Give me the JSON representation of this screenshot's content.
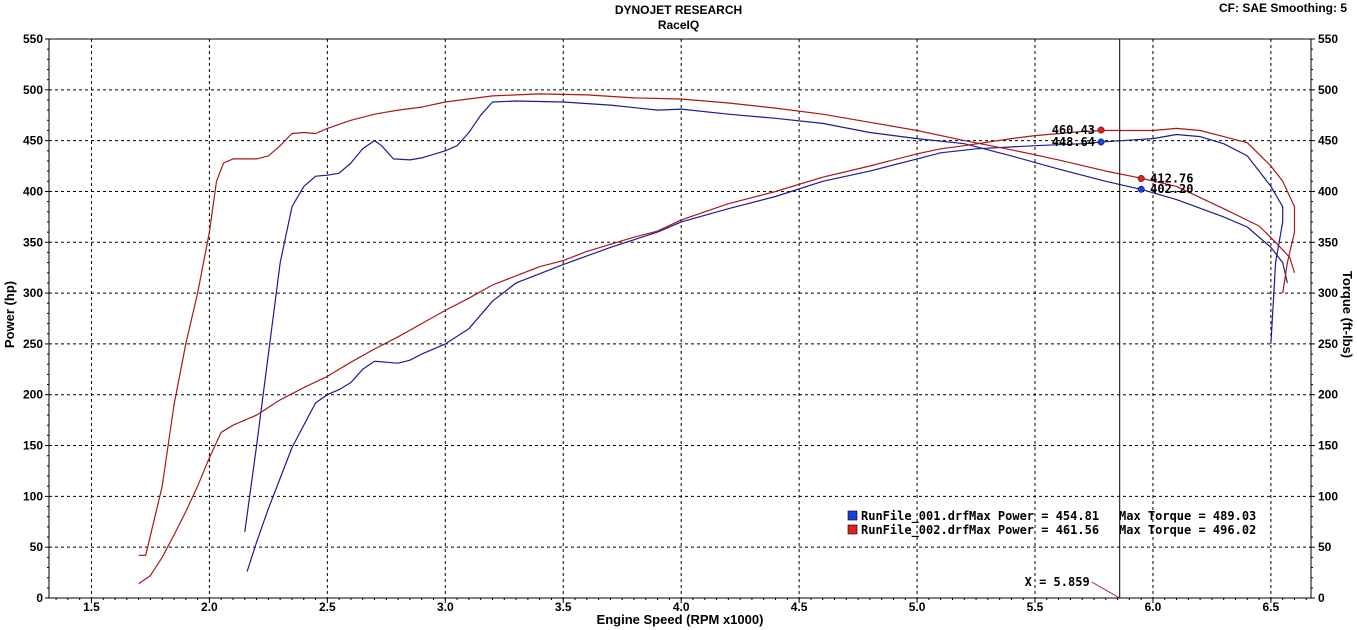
{
  "header": {
    "title": "DYNOJET RESEARCH",
    "subtitle": "RaceIQ",
    "correction": "CF: SAE  Smoothing: 5"
  },
  "chart_data": {
    "type": "line",
    "xlabel": "Engine Speed (RPM x1000)",
    "ylabel_left": "Power (hp)",
    "ylabel_right": "Torque (ft-lbs)",
    "xlim": [
      1.32,
      6.67
    ],
    "ylim": [
      0,
      550
    ],
    "x_ticks": [
      "1.5",
      "2.0",
      "2.5",
      "3.0",
      "3.5",
      "4.0",
      "4.5",
      "5.0",
      "5.5",
      "6.0",
      "6.5"
    ],
    "y_ticks": [
      "0",
      "50",
      "100",
      "150",
      "200",
      "250",
      "300",
      "350",
      "400",
      "450",
      "500",
      "550"
    ],
    "grid": true,
    "colors": {
      "run1": "#1c1c8c",
      "run2": "#a81818"
    },
    "series": [
      {
        "name": "RunFile_001.drf",
        "kind": "power",
        "color": "#1c1c8c",
        "points": [
          [
            2.16,
            26
          ],
          [
            2.2,
            55
          ],
          [
            2.25,
            88
          ],
          [
            2.3,
            118
          ],
          [
            2.35,
            148
          ],
          [
            2.4,
            170
          ],
          [
            2.45,
            192
          ],
          [
            2.5,
            200
          ],
          [
            2.55,
            205
          ],
          [
            2.6,
            212
          ],
          [
            2.65,
            225
          ],
          [
            2.7,
            233
          ],
          [
            2.75,
            232
          ],
          [
            2.8,
            231
          ],
          [
            2.85,
            234
          ],
          [
            2.9,
            240
          ],
          [
            3.0,
            250
          ],
          [
            3.1,
            265
          ],
          [
            3.2,
            292
          ],
          [
            3.3,
            310
          ],
          [
            3.5,
            328
          ],
          [
            3.7,
            345
          ],
          [
            3.9,
            360
          ],
          [
            4.0,
            370
          ],
          [
            4.2,
            383
          ],
          [
            4.4,
            395
          ],
          [
            4.6,
            410
          ],
          [
            4.8,
            420
          ],
          [
            5.0,
            432
          ],
          [
            5.1,
            438
          ],
          [
            5.25,
            442
          ],
          [
            5.5,
            445
          ],
          [
            5.7,
            447
          ],
          [
            5.8,
            449
          ],
          [
            6.0,
            452
          ],
          [
            6.1,
            456
          ],
          [
            6.2,
            454
          ],
          [
            6.3,
            447
          ],
          [
            6.4,
            435
          ],
          [
            6.5,
            405
          ],
          [
            6.55,
            385
          ],
          [
            6.55,
            370
          ],
          [
            6.52,
            330
          ],
          [
            6.5,
            250
          ]
        ]
      },
      {
        "name": "RunFile_001.drf",
        "kind": "torque",
        "color": "#1c1c8c",
        "points": [
          [
            2.15,
            65
          ],
          [
            2.2,
            150
          ],
          [
            2.25,
            240
          ],
          [
            2.3,
            330
          ],
          [
            2.35,
            385
          ],
          [
            2.4,
            405
          ],
          [
            2.45,
            415
          ],
          [
            2.5,
            416
          ],
          [
            2.55,
            418
          ],
          [
            2.6,
            428
          ],
          [
            2.65,
            442
          ],
          [
            2.7,
            450
          ],
          [
            2.73,
            445
          ],
          [
            2.78,
            432
          ],
          [
            2.85,
            431
          ],
          [
            2.9,
            433
          ],
          [
            3.0,
            440
          ],
          [
            3.05,
            445
          ],
          [
            3.1,
            458
          ],
          [
            3.15,
            475
          ],
          [
            3.2,
            488
          ],
          [
            3.3,
            489
          ],
          [
            3.5,
            488
          ],
          [
            3.7,
            485
          ],
          [
            3.9,
            480
          ],
          [
            4.0,
            481
          ],
          [
            4.2,
            476
          ],
          [
            4.4,
            472
          ],
          [
            4.6,
            467
          ],
          [
            4.8,
            458
          ],
          [
            5.0,
            452
          ],
          [
            5.2,
            447
          ],
          [
            5.4,
            435
          ],
          [
            5.6,
            422
          ],
          [
            5.8,
            410
          ],
          [
            5.95,
            402
          ],
          [
            6.1,
            392
          ],
          [
            6.3,
            375
          ],
          [
            6.4,
            365
          ],
          [
            6.5,
            345
          ],
          [
            6.55,
            330
          ],
          [
            6.57,
            310
          ]
        ]
      },
      {
        "name": "RunFile_002.drf",
        "kind": "power",
        "color": "#a81818",
        "points": [
          [
            1.7,
            14
          ],
          [
            1.75,
            22
          ],
          [
            1.8,
            40
          ],
          [
            1.85,
            62
          ],
          [
            1.9,
            85
          ],
          [
            1.95,
            110
          ],
          [
            2.0,
            138
          ],
          [
            2.05,
            163
          ],
          [
            2.1,
            170
          ],
          [
            2.2,
            180
          ],
          [
            2.3,
            195
          ],
          [
            2.4,
            207
          ],
          [
            2.5,
            218
          ],
          [
            2.6,
            232
          ],
          [
            2.7,
            245
          ],
          [
            2.8,
            257
          ],
          [
            2.9,
            270
          ],
          [
            3.0,
            283
          ],
          [
            3.1,
            295
          ],
          [
            3.2,
            308
          ],
          [
            3.3,
            317
          ],
          [
            3.4,
            326
          ],
          [
            3.5,
            332
          ],
          [
            3.6,
            341
          ],
          [
            3.7,
            348
          ],
          [
            3.8,
            355
          ],
          [
            3.9,
            361
          ],
          [
            4.0,
            372
          ],
          [
            4.2,
            388
          ],
          [
            4.4,
            400
          ],
          [
            4.6,
            414
          ],
          [
            4.8,
            425
          ],
          [
            5.0,
            437
          ],
          [
            5.1,
            442
          ],
          [
            5.2,
            445
          ],
          [
            5.4,
            452
          ],
          [
            5.5,
            455
          ],
          [
            5.7,
            459
          ],
          [
            5.8,
            460
          ],
          [
            6.0,
            460
          ],
          [
            6.1,
            462
          ],
          [
            6.2,
            460
          ],
          [
            6.3,
            454
          ],
          [
            6.4,
            448
          ],
          [
            6.5,
            425
          ],
          [
            6.55,
            410
          ],
          [
            6.6,
            385
          ],
          [
            6.6,
            360
          ],
          [
            6.57,
            330
          ],
          [
            6.55,
            300
          ]
        ]
      },
      {
        "name": "RunFile_002.drf",
        "kind": "torque",
        "color": "#a81818",
        "points": [
          [
            1.7,
            42
          ],
          [
            1.73,
            42
          ],
          [
            1.8,
            110
          ],
          [
            1.85,
            190
          ],
          [
            1.9,
            250
          ],
          [
            1.95,
            300
          ],
          [
            2.0,
            360
          ],
          [
            2.03,
            410
          ],
          [
            2.06,
            428
          ],
          [
            2.1,
            432
          ],
          [
            2.2,
            432
          ],
          [
            2.25,
            435
          ],
          [
            2.3,
            445
          ],
          [
            2.35,
            457
          ],
          [
            2.4,
            458
          ],
          [
            2.45,
            457
          ],
          [
            2.5,
            462
          ],
          [
            2.6,
            470
          ],
          [
            2.7,
            476
          ],
          [
            2.8,
            480
          ],
          [
            2.9,
            483
          ],
          [
            3.0,
            488
          ],
          [
            3.2,
            494
          ],
          [
            3.4,
            496
          ],
          [
            3.6,
            495
          ],
          [
            3.8,
            492
          ],
          [
            4.0,
            491
          ],
          [
            4.2,
            487
          ],
          [
            4.4,
            482
          ],
          [
            4.6,
            476
          ],
          [
            4.8,
            468
          ],
          [
            5.0,
            460
          ],
          [
            5.2,
            450
          ],
          [
            5.4,
            441
          ],
          [
            5.6,
            431
          ],
          [
            5.8,
            420
          ],
          [
            5.95,
            413
          ],
          [
            6.1,
            405
          ],
          [
            6.3,
            383
          ],
          [
            6.45,
            366
          ],
          [
            6.52,
            350
          ],
          [
            6.58,
            335
          ],
          [
            6.6,
            320
          ]
        ]
      }
    ],
    "cursor": {
      "x": 5.859,
      "label": "X = 5.859"
    },
    "markers": [
      {
        "label": "460.43",
        "x": 5.78,
        "y": 460.43,
        "color": "#e02020",
        "anchor": "left"
      },
      {
        "label": "448.64",
        "x": 5.78,
        "y": 448.64,
        "color": "#2040e0",
        "anchor": "left"
      },
      {
        "label": "412.76",
        "x": 5.95,
        "y": 412.76,
        "color": "#e02020",
        "anchor": "right"
      },
      {
        "label": "402.20",
        "x": 5.95,
        "y": 402.2,
        "color": "#2040e0",
        "anchor": "right"
      }
    ],
    "legend": [
      {
        "file": "RunFile_001.drf",
        "max_power": "Max Power = 454.81",
        "max_torque": "Max Torque = 489.03",
        "color": "#1c3cd8"
      },
      {
        "file": "RunFile_002.drf",
        "max_power": "Max Power = 461.56",
        "max_torque": "Max Torque = 496.02",
        "color": "#e02020"
      }
    ],
    "legend_position": "bottom-right"
  }
}
